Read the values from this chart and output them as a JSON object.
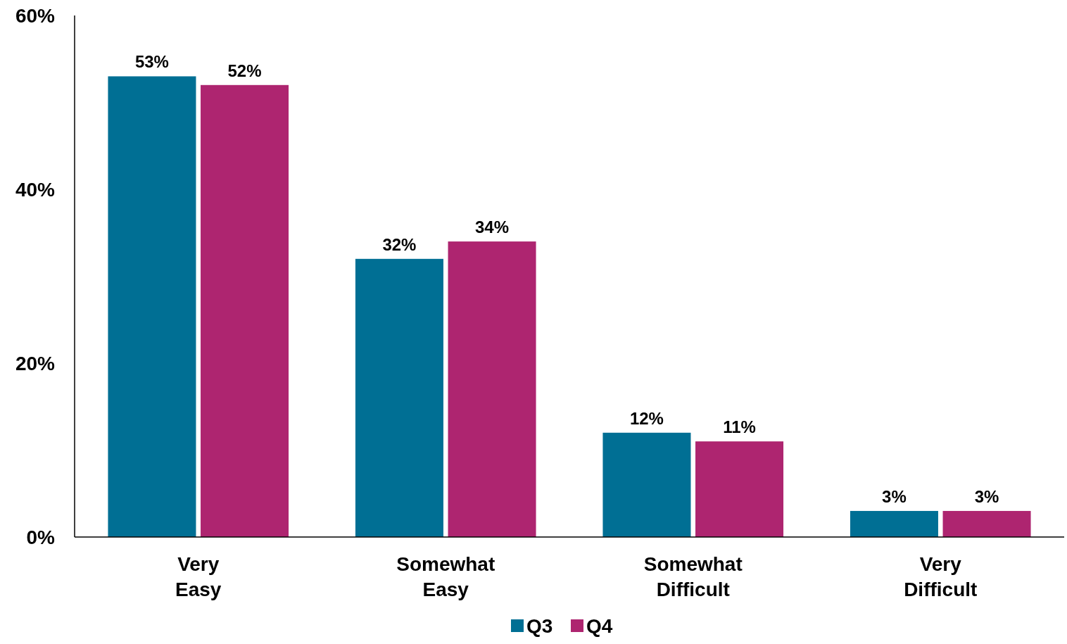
{
  "chart_data": {
    "type": "bar",
    "categories": [
      "Very Easy",
      "Somewhat Easy",
      "Somewhat Difficult",
      "Very Difficult"
    ],
    "series": [
      {
        "name": "Q3",
        "color": "#006f94",
        "values": [
          53,
          32,
          12,
          3
        ],
        "value_labels": [
          "53%",
          "32%",
          "12%",
          "3%"
        ]
      },
      {
        "name": "Q4",
        "color": "#ae2570",
        "values": [
          52,
          34,
          11,
          3
        ],
        "value_labels": [
          "52%",
          "34%",
          "11%",
          "3%"
        ]
      }
    ],
    "ylim": [
      0,
      60
    ],
    "yticks": [
      {
        "value": 0,
        "label": "0%"
      },
      {
        "value": 20,
        "label": "20%"
      },
      {
        "value": 40,
        "label": "40%"
      },
      {
        "value": 60,
        "label": "60%"
      }
    ],
    "grid": false,
    "legend": "bottom"
  }
}
